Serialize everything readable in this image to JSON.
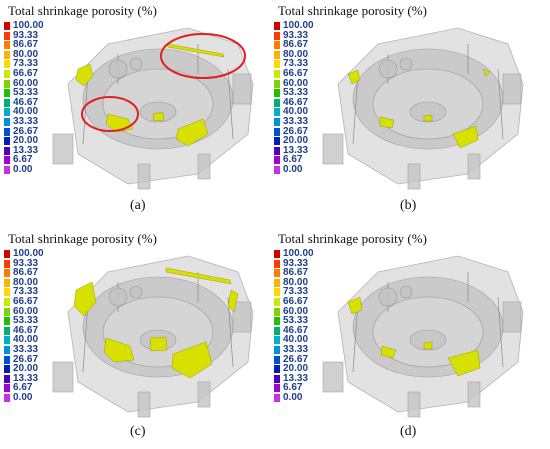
{
  "colorbar": {
    "ticks": [
      "100.00",
      "93.33",
      "86.67",
      "80.00",
      "73.33",
      "66.67",
      "60.00",
      "53.33",
      "46.67",
      "40.00",
      "33.33",
      "26.67",
      "20.00",
      "13.33",
      "6.67",
      "0.00"
    ],
    "colors": [
      "#d40000",
      "#ff3b00",
      "#ff7a00",
      "#ffb000",
      "#ffd800",
      "#ccea00",
      "#7fd400",
      "#22c000",
      "#00b070",
      "#00b0c8",
      "#0090e0",
      "#0050d0",
      "#0020b0",
      "#5000c0",
      "#a000d0",
      "#c830e0"
    ]
  },
  "panels": [
    {
      "title": "Total shrinkage porosity (%)",
      "caption": "(a)"
    },
    {
      "title": "Total shrinkage porosity (%)",
      "caption": "(b)"
    },
    {
      "title": "Total shrinkage porosity (%)",
      "caption": "(c)"
    },
    {
      "title": "Total shrinkage porosity (%)",
      "caption": "(d)"
    }
  ],
  "defect_color": "#d7e000",
  "highlight_color": "#e02020"
}
